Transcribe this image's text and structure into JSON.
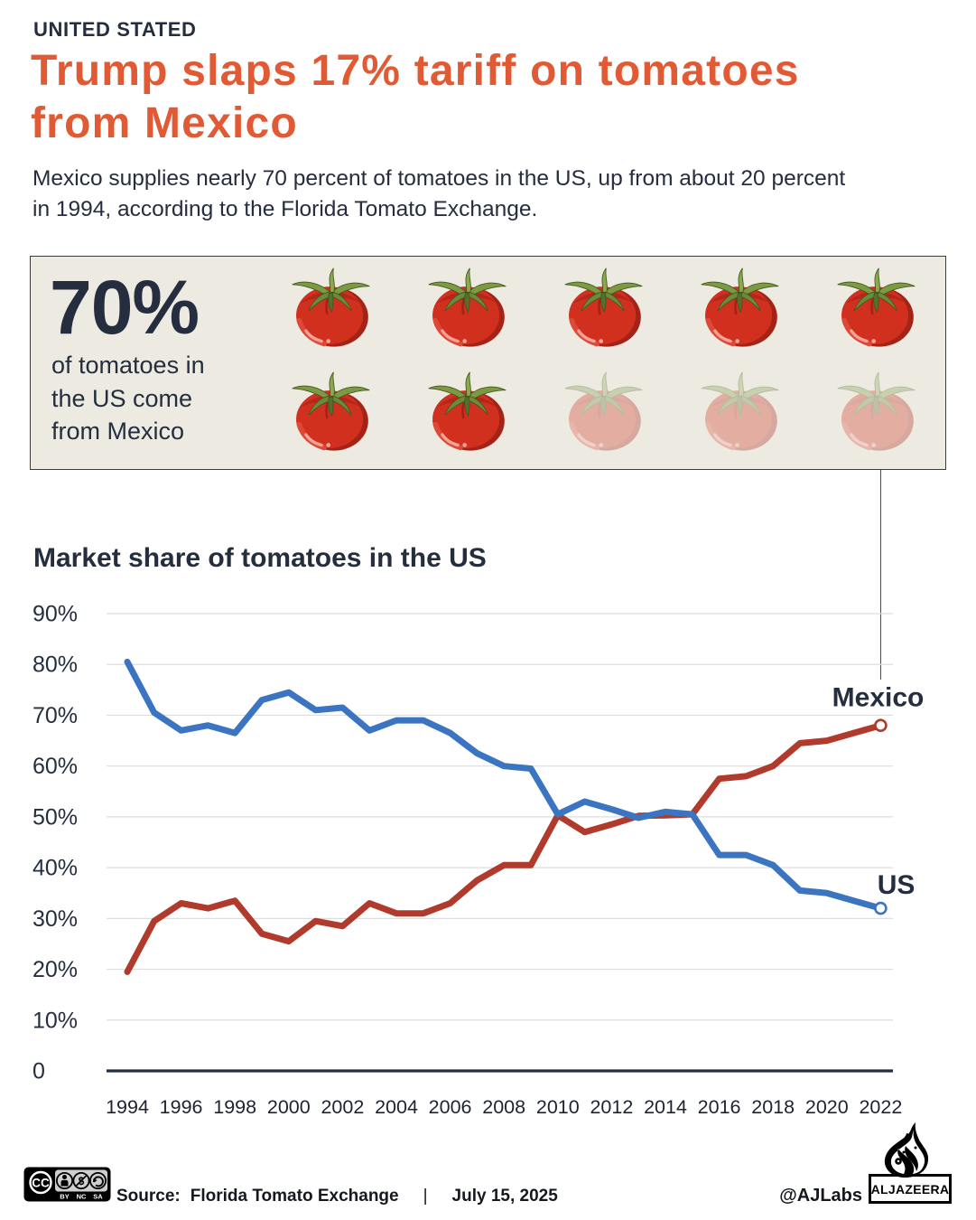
{
  "colors": {
    "accent_orange": "#e15a33",
    "navy_text": "#252e3e",
    "us_blue": "#3b74c0",
    "mexico_red": "#b03a2b",
    "box_background": "#edeae2",
    "gridline": "#dedede"
  },
  "header": {
    "kicker": "UNITED STATED",
    "title": "Trump slaps 17% tariff on tomatoes from Mexico",
    "subtitle": "Mexico supplies nearly 70 percent of tomatoes in the US, up from about 20 percent in 1994, according to the Florida Tomato Exchange."
  },
  "stat": {
    "value": "70%",
    "description": "of tomatoes in the US come from Mexico",
    "icon": "tomato-icon",
    "icons_total": 10,
    "icons_highlighted": 7
  },
  "chart_data": {
    "type": "line",
    "title": "Market share of tomatoes in the US",
    "x": [
      1994,
      1995,
      1996,
      1997,
      1998,
      1999,
      2000,
      2001,
      2002,
      2003,
      2004,
      2005,
      2006,
      2007,
      2008,
      2009,
      2010,
      2011,
      2012,
      2013,
      2014,
      2015,
      2016,
      2017,
      2018,
      2019,
      2020,
      2021,
      2022
    ],
    "x_tick_labels": [
      "1994",
      "1996",
      "1998",
      "2000",
      "2002",
      "2004",
      "2006",
      "2008",
      "2010",
      "2012",
      "2014",
      "2016",
      "2018",
      "2020",
      "2022"
    ],
    "y_ticks": [
      0,
      10,
      20,
      30,
      40,
      50,
      60,
      70,
      80,
      90
    ],
    "y_tick_labels": [
      "0",
      "10%",
      "20%",
      "30%",
      "40%",
      "50%",
      "60%",
      "70%",
      "80%",
      "90%"
    ],
    "ylim": [
      0,
      95
    ],
    "grid": "horizontal",
    "legend_position": "end-of-line",
    "series": [
      {
        "name": "Mexico",
        "color": "#b03a2b",
        "values": [
          19.5,
          29.5,
          33,
          32,
          33.5,
          27,
          25.5,
          29.5,
          28.5,
          33,
          31,
          31,
          33,
          37.5,
          40.5,
          40.5,
          50.3,
          47,
          48.5,
          50.2,
          50.3,
          50.5,
          57.5,
          58,
          60,
          64.5,
          65,
          66.5,
          68
        ]
      },
      {
        "name": "US",
        "color": "#3b74c0",
        "values": [
          80.5,
          70.5,
          67,
          68,
          66.5,
          73,
          74.5,
          71,
          71.5,
          67,
          69,
          69,
          66.5,
          62.5,
          60,
          59.5,
          50.5,
          53,
          51.5,
          49.8,
          51,
          50.5,
          42.5,
          42.5,
          40.5,
          35.5,
          35,
          33.5,
          32
        ]
      }
    ]
  },
  "footer": {
    "license_icons": "CC BY NC SA",
    "source_label": "Source:",
    "source": "Florida Tomato Exchange",
    "separator": "|",
    "date": "July 15, 2025",
    "credit": "@AJLabs",
    "brand": "ALJAZEERA"
  }
}
